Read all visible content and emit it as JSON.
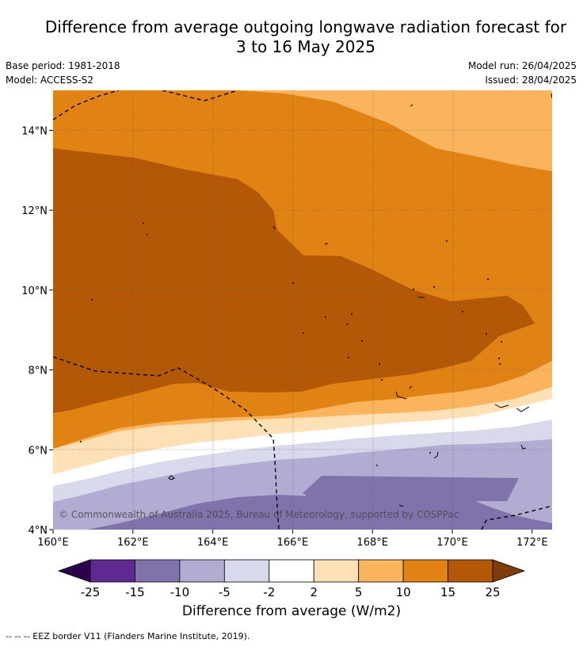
{
  "title": {
    "line1": "Difference from average outgoing longwave radiation forecast for",
    "line2": "3 to 16 May 2025"
  },
  "info": {
    "base_period": "Base period: 1981-2018",
    "model": "Model: ACCESS-S2",
    "model_run": "Model run: 26/04/2025",
    "issued": "Issued: 28/04/2025"
  },
  "map": {
    "lon_range": [
      160,
      172.5
    ],
    "lat_range": [
      4,
      15
    ],
    "lon_ticks": [
      {
        "value": 160,
        "label": "160°E"
      },
      {
        "value": 162,
        "label": "162°E"
      },
      {
        "value": 164,
        "label": "164°E"
      },
      {
        "value": 166,
        "label": "166°E"
      },
      {
        "value": 168,
        "label": "168°E"
      },
      {
        "value": 170,
        "label": "170°E"
      },
      {
        "value": 172,
        "label": "172°E"
      }
    ],
    "lat_ticks": [
      {
        "value": 4,
        "label": "4°N"
      },
      {
        "value": 6,
        "label": "6°N"
      },
      {
        "value": 8,
        "label": "8°N"
      },
      {
        "value": 10,
        "label": "10°N"
      },
      {
        "value": 12,
        "label": "12°N"
      },
      {
        "value": 14,
        "label": "14°N"
      }
    ],
    "copyright": "© Commonwealth of Australia 2025, Bureau of Meteorology, supported by COSPPac"
  },
  "colorbar": {
    "tick_labels": [
      "-25",
      "-15",
      "-10",
      "-5",
      "-2",
      "2",
      "5",
      "10",
      "15",
      "25"
    ],
    "colors": [
      "#2d004b",
      "#5e2a8f",
      "#8073ac",
      "#b2abd2",
      "#d8daeb",
      "#ffffff",
      "#fee0b6",
      "#fbb45e",
      "#e08214",
      "#b35806",
      "#7f3b08"
    ],
    "label": "Difference from average (W/m2)"
  },
  "footnote": "--  --  -- EEZ border V11 (Flanders Marine Institute, 2019)."
}
